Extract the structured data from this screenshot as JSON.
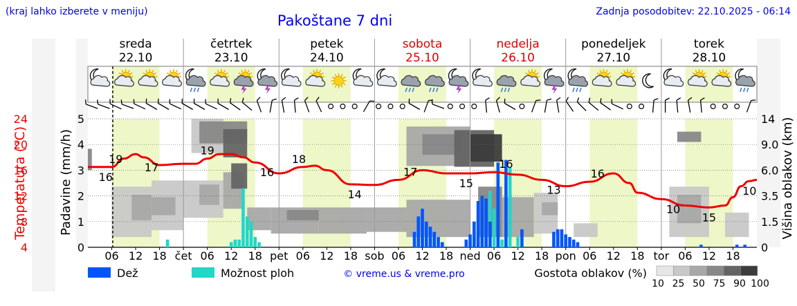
{
  "header": {
    "menu_note": "(kraj lahko izberete v meniju)",
    "title": "Pakoštane 7 dni",
    "updated": "Zadnja posodobitev: 22.10.2025 - 06:14"
  },
  "days": [
    {
      "name": "sreda",
      "date": "22.10",
      "weekend": false
    },
    {
      "name": "četrtek",
      "date": "23.10",
      "weekend": false
    },
    {
      "name": "petek",
      "date": "24.10",
      "weekend": false
    },
    {
      "name": "sobota",
      "date": "25.10",
      "weekend": true
    },
    {
      "name": "nedelja",
      "date": "26.10",
      "weekend": true
    },
    {
      "name": "ponedeljek",
      "date": "27.10",
      "weekend": false
    },
    {
      "name": "torek",
      "date": "28.10",
      "weekend": false
    }
  ],
  "xaxis_labels": [
    "06",
    "12",
    "18",
    "čet",
    "06",
    "12",
    "18",
    "pet",
    "06",
    "12",
    "18",
    "sob",
    "06",
    "12",
    "18",
    "ned",
    "06",
    "12",
    "18",
    "pon",
    "06",
    "12",
    "18",
    "tor",
    "06",
    "12",
    "18"
  ],
  "left_axis": {
    "temp_label": "Temperatura (°C)",
    "temp_ticks": [
      "24",
      "20",
      "16",
      "12",
      "8",
      "4"
    ],
    "precip_label": "Padavine (mm/h)",
    "precip_ticks": [
      "5",
      "4",
      "3",
      "2",
      "1",
      "0"
    ]
  },
  "right_axis": {
    "label": "Višina oblakov (km)",
    "ticks": [
      "14",
      "9.0",
      "6.0",
      "3.5",
      "1.5",
      "0"
    ]
  },
  "legend": {
    "rain": "Dež",
    "showers": "Možnost ploh",
    "credit": "© vreme.us & vreme.pro",
    "cloud_title": "Gostota oblakov (%)",
    "cloud_levels": [
      "10",
      "25",
      "50",
      "75",
      "90",
      "100"
    ],
    "cloud_colors": [
      "#e6e6e6",
      "#c8c8c8",
      "#a8a8a8",
      "#888888",
      "#646464",
      "#3c3c3c"
    ]
  },
  "colors": {
    "temperature": "#ee0000",
    "rain": "#0055ff",
    "showers": "#22d6c8",
    "daylight": "#eef7c8",
    "weekend_text": "#dd0000"
  },
  "chart_data": {
    "type": "line",
    "x_unit": "hours since 22.10 00:00",
    "temperature": {
      "name": "Temperatura",
      "x": [
        0,
        6,
        9,
        12,
        14,
        18,
        24,
        27,
        30,
        33,
        36,
        39,
        42,
        48,
        54,
        57,
        60,
        66,
        72,
        78,
        84,
        90,
        96,
        102,
        108,
        114,
        120,
        126,
        132,
        136,
        138,
        144,
        150,
        156,
        160,
        162,
        164,
        166,
        168
      ],
      "y": [
        16.5,
        16.5,
        17.8,
        18.5,
        18,
        16.8,
        17,
        17,
        17.8,
        18.5,
        18.5,
        18,
        17.2,
        15.5,
        16.5,
        16.7,
        16,
        13.8,
        13.7,
        14.5,
        16,
        15.5,
        15.5,
        15.7,
        15.3,
        14.5,
        13.5,
        14.2,
        15.5,
        14,
        12.5,
        11.5,
        10.5,
        10.2,
        10.5,
        11.8,
        13.5,
        14.3,
        14.5
      ]
    },
    "temperature_labels": [
      {
        "x": 1,
        "label": "16"
      },
      {
        "x": 16,
        "label": "17"
      },
      {
        "x": 7,
        "label": "19"
      },
      {
        "x": 30,
        "label": "19"
      },
      {
        "x": 45,
        "label": "16"
      },
      {
        "x": 53,
        "label": "18"
      },
      {
        "x": 67,
        "label": "14"
      },
      {
        "x": 81,
        "label": "17"
      },
      {
        "x": 95,
        "label": "15"
      },
      {
        "x": 105,
        "label": "16"
      },
      {
        "x": 117,
        "label": "13"
      },
      {
        "x": 128,
        "label": "16"
      },
      {
        "x": 147,
        "label": "10"
      },
      {
        "x": 156,
        "label": "15"
      },
      {
        "x": 167,
        "label": "10"
      }
    ],
    "rain": {
      "name": "Dež",
      "x": [
        82,
        83,
        84,
        85,
        86,
        87,
        88,
        89,
        95,
        96,
        97,
        98,
        99,
        100,
        101,
        103,
        105,
        109,
        117,
        118,
        119,
        120,
        121,
        122,
        123,
        154,
        163,
        165
      ],
      "y": [
        0.6,
        1.2,
        1.5,
        1.0,
        0.8,
        0.6,
        0.4,
        0.2,
        0.3,
        0.5,
        1.0,
        1.8,
        2.0,
        1.9,
        1.0,
        3.3,
        3.4,
        0.7,
        0.6,
        0.7,
        0.7,
        0.5,
        0.4,
        0.3,
        0.2,
        0.1,
        0.1,
        0.1
      ]
    },
    "showers": {
      "name": "Možnost ploh",
      "x": [
        20,
        36,
        37,
        38,
        39,
        40,
        41,
        42,
        43,
        83,
        84,
        85,
        86,
        87,
        89,
        96,
        97,
        98,
        99,
        100,
        101,
        102,
        103,
        104,
        106,
        108
      ],
      "y": [
        0.3,
        0.2,
        0.3,
        0.3,
        2.3,
        1.2,
        1.0,
        0.4,
        0.2,
        0.5,
        0.7,
        1.0,
        0.6,
        0.2,
        0.2,
        0.2,
        0.4,
        0.6,
        1.1,
        1.4,
        2.2,
        1.5,
        0.7,
        0.3,
        3.1,
        0.4
      ]
    },
    "cloud_blocks": [
      {
        "x0": 0,
        "x1": 1,
        "h0": 6,
        "h1": 8.5,
        "level": 3
      },
      {
        "x0": 6,
        "x1": 16,
        "h0": 0.6,
        "h1": 4.4,
        "level": 1
      },
      {
        "x0": 11,
        "x1": 16,
        "h0": 1.6,
        "h1": 3.6,
        "level": 2
      },
      {
        "x0": 16,
        "x1": 24,
        "h0": 1.0,
        "h1": 5.0,
        "level": 1
      },
      {
        "x0": 16,
        "x1": 22,
        "h0": 2.0,
        "h1": 3.4,
        "level": 2
      },
      {
        "x0": 24,
        "x1": 34,
        "h0": 1.8,
        "h1": 5.0,
        "level": 1
      },
      {
        "x0": 28,
        "x1": 33,
        "h0": 2.8,
        "h1": 4.6,
        "level": 2
      },
      {
        "x0": 26,
        "x1": 34,
        "h0": 8.0,
        "h1": 14.0,
        "level": 1
      },
      {
        "x0": 28,
        "x1": 40,
        "h0": 9.2,
        "h1": 13.5,
        "level": 3
      },
      {
        "x0": 34,
        "x1": 40,
        "h0": 7.5,
        "h1": 12.0,
        "level": 4
      },
      {
        "x0": 34,
        "x1": 39,
        "h0": 2.5,
        "h1": 5.8,
        "level": 2
      },
      {
        "x0": 36,
        "x1": 40,
        "h0": 4.2,
        "h1": 6.8,
        "level": 4
      },
      {
        "x0": 40,
        "x1": 46,
        "h0": 1.0,
        "h1": 2.6,
        "level": 2
      },
      {
        "x0": 46,
        "x1": 58,
        "h0": 0.8,
        "h1": 2.6,
        "level": 2
      },
      {
        "x0": 50,
        "x1": 58,
        "h0": 1.6,
        "h1": 2.4,
        "level": 3
      },
      {
        "x0": 58,
        "x1": 70,
        "h0": 0.8,
        "h1": 2.6,
        "level": 2
      },
      {
        "x0": 70,
        "x1": 80,
        "h0": 0.9,
        "h1": 2.6,
        "level": 2
      },
      {
        "x0": 80,
        "x1": 96,
        "h0": 0.6,
        "h1": 3.2,
        "level": 2
      },
      {
        "x0": 80,
        "x1": 96,
        "h0": 6.5,
        "h1": 12.5,
        "level": 2
      },
      {
        "x0": 84,
        "x1": 94,
        "h0": 7.8,
        "h1": 11.0,
        "level": 3
      },
      {
        "x0": 92,
        "x1": 102,
        "h0": 6.4,
        "h1": 11.8,
        "level": 4
      },
      {
        "x0": 96,
        "x1": 104,
        "h0": 7.0,
        "h1": 11.0,
        "level": 5
      },
      {
        "x0": 98,
        "x1": 104,
        "h0": 0.6,
        "h1": 4.4,
        "level": 3
      },
      {
        "x0": 104,
        "x1": 112,
        "h0": 0.6,
        "h1": 3.4,
        "level": 2
      },
      {
        "x0": 112,
        "x1": 118,
        "h0": 0.8,
        "h1": 3.8,
        "level": 1
      },
      {
        "x0": 114,
        "x1": 118,
        "h0": 2.0,
        "h1": 3.0,
        "level": 2
      },
      {
        "x0": 122,
        "x1": 128,
        "h0": 0.6,
        "h1": 1.4,
        "level": 1
      },
      {
        "x0": 146,
        "x1": 156,
        "h0": 0.6,
        "h1": 4.4,
        "level": 1
      },
      {
        "x0": 148,
        "x1": 154,
        "h0": 1.4,
        "h1": 3.6,
        "level": 2
      },
      {
        "x0": 148,
        "x1": 154,
        "h0": 9.5,
        "h1": 11.5,
        "level": 3
      },
      {
        "x0": 160,
        "x1": 166,
        "h0": 0.6,
        "h1": 2.2,
        "level": 1
      }
    ],
    "weather_icons": [
      "moon-cloud-icon",
      "sun-cloud-icon",
      "sun-cloud-icon",
      "cloud-sun-icon",
      "moon-rain-icon",
      "sun-cloud-icon",
      "sun-storm-icon",
      "moon-storm-icon",
      "moon-cloud-icon",
      "sun-cloud-icon",
      "sun-icon",
      "moon-cloud-icon",
      "moon-cloud-icon",
      "cloud-rain-icon",
      "cloud-rain-icon",
      "moon-storm-icon",
      "moon-cloud-icon",
      "cloud-rain-icon",
      "cloud-sun-icon",
      "moon-storm-icon",
      "moon-rain-icon",
      "sun-cloud-icon",
      "sun-cloud-icon",
      "moon-icon",
      "moon-cloud-icon",
      "cloud-sun-icon",
      "cloud-sun-icon",
      "moon-rain-icon"
    ],
    "wind_arrows": [
      {
        "x": 1,
        "dir": 110
      },
      {
        "x": 4,
        "dir": 110
      },
      {
        "x": 7,
        "dir": 115
      },
      {
        "x": 10,
        "dir": 110
      },
      {
        "x": 13,
        "dir": 115
      },
      {
        "x": 16,
        "dir": 120
      },
      {
        "x": 19,
        "dir": 120
      },
      {
        "x": 22,
        "dir": 115
      },
      {
        "x": 25,
        "dir": 120
      },
      {
        "x": 28,
        "dir": 120
      },
      {
        "x": 31,
        "dir": 115
      },
      {
        "x": 34,
        "dir": 120
      },
      {
        "x": 37,
        "dir": 125
      },
      {
        "x": 40,
        "dir": 130
      },
      {
        "x": 43,
        "dir": 160
      },
      {
        "x": 46,
        "dir": 190
      },
      {
        "x": 49,
        "dir": 170
      },
      {
        "x": 52,
        "dir": 175
      },
      {
        "x": 55,
        "dir": 160
      },
      {
        "x": 58,
        "dir": 155
      },
      {
        "x": 61,
        "dir": 0
      },
      {
        "x": 64,
        "dir": 0
      },
      {
        "x": 67,
        "dir": 0
      },
      {
        "x": 70,
        "dir": 210
      },
      {
        "x": 73,
        "dir": 0
      },
      {
        "x": 76,
        "dir": 0
      },
      {
        "x": 79,
        "dir": 0
      },
      {
        "x": 82,
        "dir": 120
      },
      {
        "x": 85,
        "dir": 200
      },
      {
        "x": 88,
        "dir": 110
      },
      {
        "x": 91,
        "dir": 0
      },
      {
        "x": 94,
        "dir": 0
      },
      {
        "x": 97,
        "dir": 0
      },
      {
        "x": 100,
        "dir": 175
      },
      {
        "x": 103,
        "dir": 165
      },
      {
        "x": 106,
        "dir": 120
      },
      {
        "x": 109,
        "dir": 0
      },
      {
        "x": 112,
        "dir": 200
      },
      {
        "x": 115,
        "dir": 190
      },
      {
        "x": 118,
        "dir": 170
      },
      {
        "x": 121,
        "dir": 145
      },
      {
        "x": 124,
        "dir": 135
      },
      {
        "x": 127,
        "dir": 130
      },
      {
        "x": 130,
        "dir": 125
      },
      {
        "x": 133,
        "dir": 115
      },
      {
        "x": 136,
        "dir": 0
      },
      {
        "x": 139,
        "dir": 0
      },
      {
        "x": 142,
        "dir": 185
      },
      {
        "x": 145,
        "dir": 180
      },
      {
        "x": 148,
        "dir": 175
      },
      {
        "x": 151,
        "dir": 170
      },
      {
        "x": 154,
        "dir": 175
      },
      {
        "x": 157,
        "dir": 0
      },
      {
        "x": 160,
        "dir": 0
      },
      {
        "x": 163,
        "dir": 0
      },
      {
        "x": 166,
        "dir": 200
      }
    ]
  }
}
